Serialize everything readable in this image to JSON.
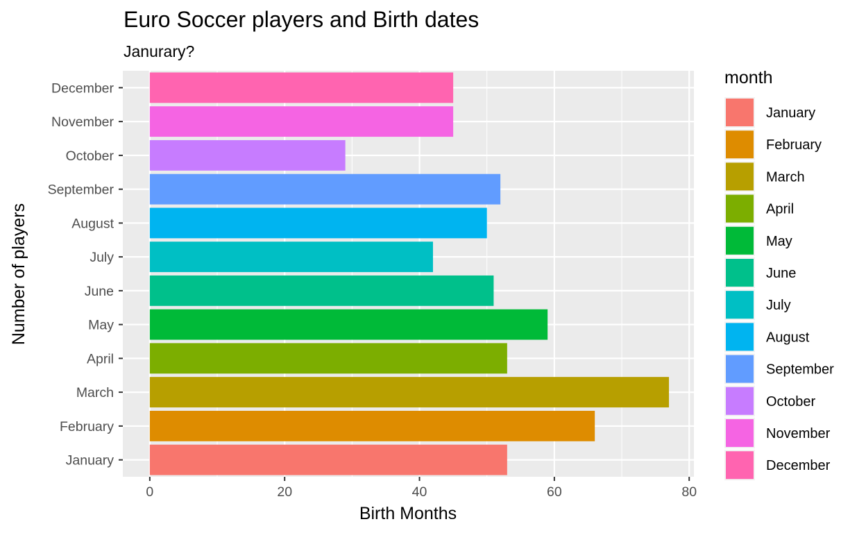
{
  "chart_data": {
    "type": "bar",
    "orientation": "horizontal",
    "title": "Euro Soccer players and Birth dates",
    "subtitle": "Janurary?",
    "xlabel": "Birth Months",
    "ylabel": "Number of players",
    "xlim": [
      -4,
      80.7
    ],
    "xticks": [
      0,
      20,
      40,
      60,
      80
    ],
    "xtick_labels": [
      "0",
      "20",
      "40",
      "60",
      "80"
    ],
    "grid": true,
    "legend_title": "month",
    "legend_position": "right",
    "categories": [
      "January",
      "February",
      "March",
      "April",
      "May",
      "June",
      "July",
      "August",
      "September",
      "October",
      "November",
      "December"
    ],
    "values": [
      53,
      66,
      77,
      53,
      59,
      51,
      42,
      50,
      52,
      29,
      45,
      45
    ],
    "colors": [
      "#F8766D",
      "#DE8C00",
      "#B79F00",
      "#7CAE00",
      "#00BA38",
      "#00C08B",
      "#00BFC4",
      "#00B4F0",
      "#619CFF",
      "#C77CFF",
      "#F564E3",
      "#FF64B0"
    ]
  }
}
